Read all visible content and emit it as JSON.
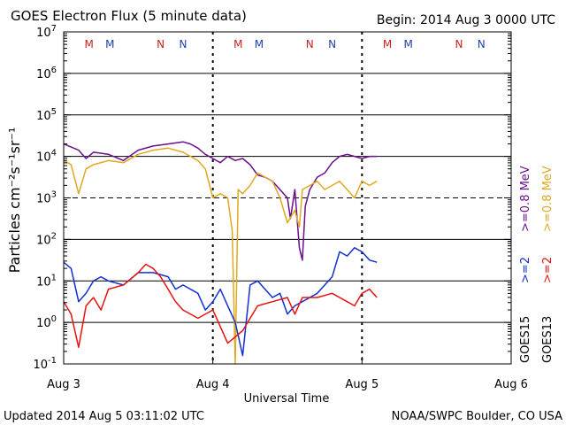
{
  "header": {
    "title": "GOES Electron Flux (5 minute data)",
    "begin": "Begin: 2014 Aug 3 0000 UTC"
  },
  "footer": {
    "updated": "Updated 2014 Aug  5 03:11:02 UTC",
    "credit": "NOAA/SWPC Boulder, CO USA"
  },
  "colors": {
    "goes15_08": "#6a0f8e",
    "goes15_2": "#1030d0",
    "goes13_08": "#e0a820",
    "goes13_2": "#e81010",
    "marker_m": "#cc2020",
    "marker_n_red": "#cc2020",
    "marker_n_blue": "#2040b0"
  },
  "chart_data": {
    "type": "line",
    "title": "GOES Electron Flux (5 minute data)",
    "xlabel": "Universal Time",
    "ylabel": "Particles cm⁻²s⁻¹sr⁻¹",
    "yscale": "log",
    "ylim_exp": [
      -1,
      7
    ],
    "y_ticks": [
      {
        "exp": -1,
        "base": "10",
        "sup": "-1"
      },
      {
        "exp": 0,
        "base": "10",
        "sup": "0"
      },
      {
        "exp": 1,
        "base": "10",
        "sup": "1"
      },
      {
        "exp": 2,
        "base": "10",
        "sup": "2"
      },
      {
        "exp": 3,
        "base": "10",
        "sup": "3"
      },
      {
        "exp": 4,
        "base": "10",
        "sup": "4"
      },
      {
        "exp": 5,
        "base": "10",
        "sup": "5"
      },
      {
        "exp": 6,
        "base": "10",
        "sup": "6"
      },
      {
        "exp": 7,
        "base": "10",
        "sup": "7"
      }
    ],
    "threshold_exp": 3,
    "xlim_days": [
      0,
      3
    ],
    "x_ticks": [
      {
        "day": 0,
        "label": "Aug 3"
      },
      {
        "day": 1,
        "label": "Aug 4"
      },
      {
        "day": 2,
        "label": "Aug 5"
      },
      {
        "day": 3,
        "label": "Aug 6"
      }
    ],
    "markers": [
      {
        "day": 0.17,
        "label": "M",
        "color": "marker_m"
      },
      {
        "day": 0.31,
        "label": "M",
        "color": "marker_n_blue"
      },
      {
        "day": 0.65,
        "label": "N",
        "color": "marker_n_red"
      },
      {
        "day": 0.8,
        "label": "N",
        "color": "marker_n_blue"
      },
      {
        "day": 1.17,
        "label": "M",
        "color": "marker_m"
      },
      {
        "day": 1.31,
        "label": "M",
        "color": "marker_n_blue"
      },
      {
        "day": 1.65,
        "label": "N",
        "color": "marker_n_red"
      },
      {
        "day": 1.8,
        "label": "N",
        "color": "marker_n_blue"
      },
      {
        "day": 2.17,
        "label": "M",
        "color": "marker_m"
      },
      {
        "day": 2.31,
        "label": "M",
        "color": "marker_n_blue"
      },
      {
        "day": 2.65,
        "label": "N",
        "color": "marker_n_red"
      },
      {
        "day": 2.8,
        "label": "N",
        "color": "marker_n_blue"
      }
    ],
    "legend": [
      {
        "prefix": "GOES15",
        "ge08": ">=0.8 MeV",
        "ge2": ">=2",
        "color08": "goes15_08",
        "color2": "goes15_2"
      },
      {
        "prefix": "GOES13",
        "ge08": ">=0.8 MeV",
        "ge2": ">=2",
        "color08": "goes13_08",
        "color2": "goes13_2"
      }
    ],
    "series": [
      {
        "name": "GOES15 >=0.8 MeV",
        "color": "goes15_08",
        "x": [
          0,
          0.1,
          0.15,
          0.2,
          0.3,
          0.4,
          0.5,
          0.6,
          0.7,
          0.8,
          0.85,
          0.9,
          0.95,
          1.0,
          1.05,
          1.1,
          1.15,
          1.2,
          1.25,
          1.3,
          1.35,
          1.4,
          1.45,
          1.5,
          1.52,
          1.55,
          1.58,
          1.6,
          1.62,
          1.65,
          1.7,
          1.75,
          1.8,
          1.85,
          1.9,
          1.95,
          2.0,
          2.05,
          2.1
        ],
        "y": [
          4.3,
          4.15,
          3.95,
          4.1,
          4.05,
          3.9,
          4.15,
          4.25,
          4.3,
          4.35,
          4.3,
          4.2,
          4.05,
          3.95,
          3.85,
          4.0,
          3.9,
          3.95,
          3.8,
          3.55,
          3.5,
          3.4,
          3.2,
          3.0,
          2.5,
          3.2,
          1.8,
          1.5,
          2.8,
          3.2,
          3.5,
          3.6,
          3.85,
          4.0,
          4.05,
          4.0,
          3.95,
          4.0,
          4.0
        ]
      },
      {
        "name": "GOES13 >=0.8 MeV",
        "color": "goes13_08",
        "x": [
          0,
          0.05,
          0.1,
          0.15,
          0.2,
          0.3,
          0.4,
          0.5,
          0.6,
          0.7,
          0.8,
          0.9,
          0.95,
          1.0,
          1.05,
          1.1,
          1.13,
          1.15,
          1.17,
          1.2,
          1.25,
          1.3,
          1.35,
          1.4,
          1.45,
          1.5,
          1.55,
          1.58,
          1.6,
          1.65,
          1.7,
          1.75,
          1.8,
          1.85,
          1.9,
          1.95,
          2.0,
          2.05,
          2.1
        ],
        "y": [
          3.9,
          3.8,
          3.1,
          3.7,
          3.8,
          3.9,
          3.85,
          4.05,
          4.15,
          4.2,
          4.1,
          3.9,
          3.7,
          3.0,
          3.1,
          3.0,
          2.2,
          -1.0,
          3.2,
          3.1,
          3.3,
          3.6,
          3.5,
          3.4,
          3.0,
          2.4,
          2.7,
          2.3,
          3.2,
          3.3,
          3.4,
          3.2,
          3.3,
          3.4,
          3.2,
          3.0,
          3.4,
          3.3,
          3.4
        ]
      },
      {
        "name": "GOES15 >=2 MeV",
        "color": "goes15_2",
        "x": [
          0,
          0.05,
          0.1,
          0.15,
          0.2,
          0.25,
          0.3,
          0.4,
          0.5,
          0.6,
          0.7,
          0.75,
          0.8,
          0.9,
          0.95,
          1.0,
          1.05,
          1.1,
          1.15,
          1.2,
          1.25,
          1.3,
          1.35,
          1.4,
          1.45,
          1.5,
          1.55,
          1.6,
          1.65,
          1.7,
          1.75,
          1.8,
          1.85,
          1.9,
          1.95,
          2.0,
          2.05,
          2.1
        ],
        "y": [
          1.45,
          1.3,
          0.5,
          0.7,
          1.0,
          1.1,
          1.0,
          0.9,
          1.2,
          1.2,
          1.1,
          0.8,
          0.9,
          0.7,
          0.3,
          0.5,
          0.8,
          0.4,
          0.0,
          -0.8,
          0.9,
          1.0,
          0.8,
          0.6,
          0.7,
          0.2,
          0.4,
          0.5,
          0.6,
          0.7,
          0.9,
          1.1,
          1.7,
          1.6,
          1.8,
          1.7,
          1.5,
          1.45
        ]
      },
      {
        "name": "GOES13 >=2 MeV",
        "color": "goes13_2",
        "x": [
          0,
          0.05,
          0.1,
          0.15,
          0.2,
          0.25,
          0.3,
          0.4,
          0.5,
          0.55,
          0.6,
          0.65,
          0.7,
          0.75,
          0.8,
          0.9,
          1.0,
          1.1,
          1.2,
          1.3,
          1.4,
          1.5,
          1.55,
          1.6,
          1.7,
          1.8,
          1.9,
          1.95,
          2.0,
          2.05,
          2.1
        ],
        "y": [
          0.5,
          0.2,
          -0.6,
          0.4,
          0.6,
          0.3,
          0.8,
          0.9,
          1.2,
          1.4,
          1.3,
          1.1,
          0.8,
          0.5,
          0.3,
          0.1,
          0.3,
          -0.5,
          -0.2,
          0.4,
          0.5,
          0.6,
          0.2,
          0.6,
          0.6,
          0.7,
          0.5,
          0.4,
          0.7,
          0.8,
          0.6
        ]
      }
    ]
  }
}
